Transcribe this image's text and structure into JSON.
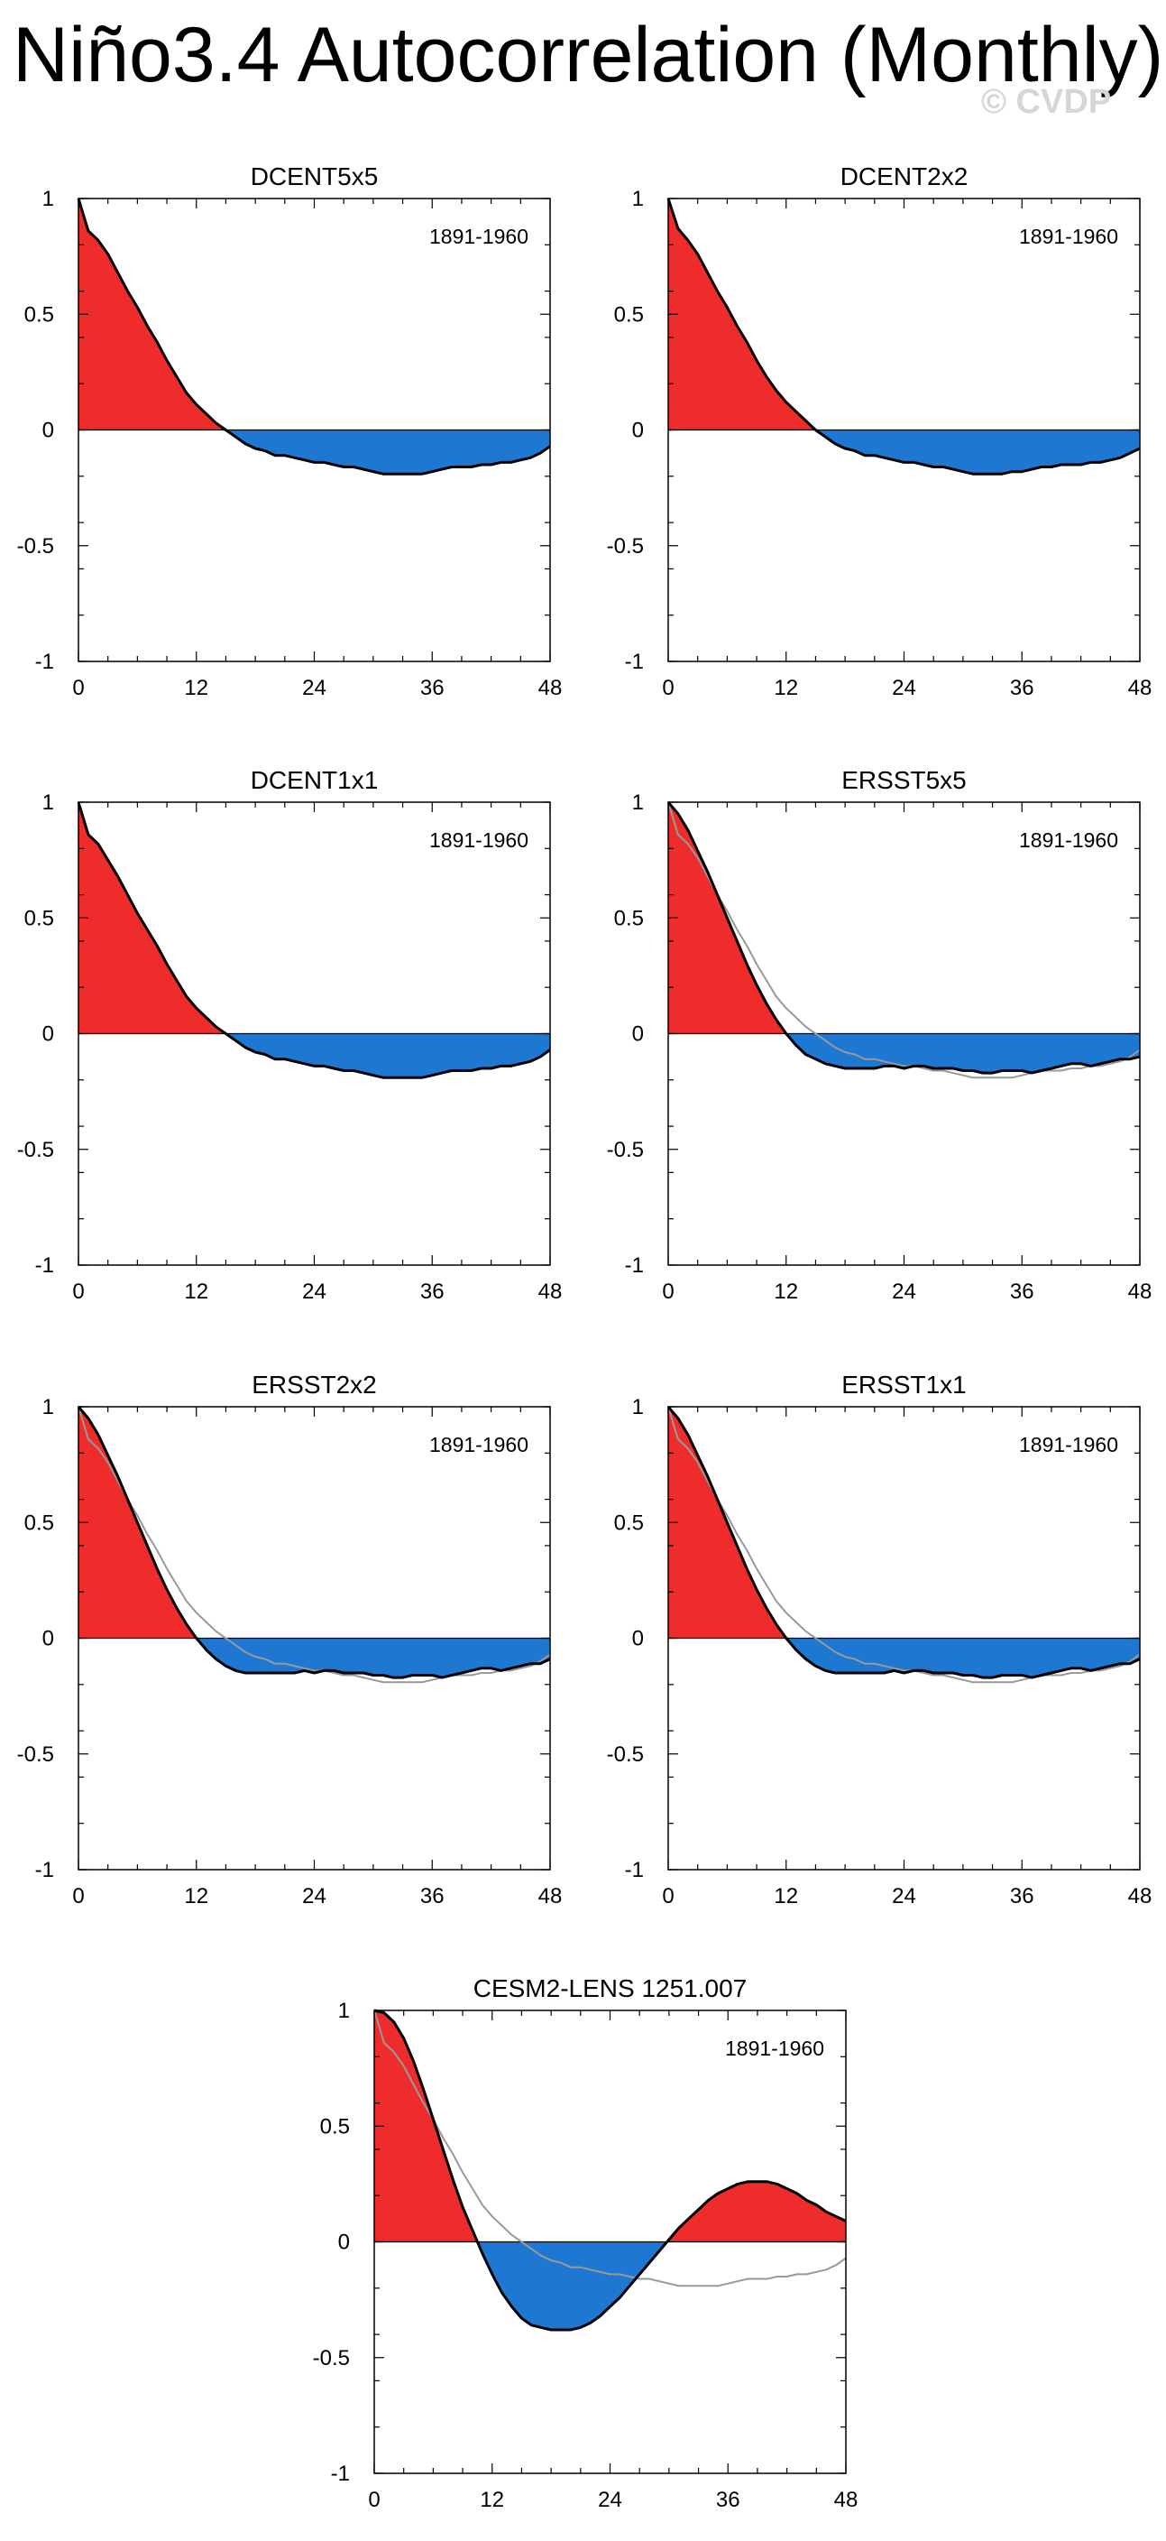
{
  "page": {
    "title": "Niño3.4 Autocorrelation (Monthly)",
    "watermark": "© CVDP"
  },
  "colors": {
    "positive": "#ee2c2c",
    "negative": "#1e78d2",
    "line": "#000000",
    "reference": "#999999"
  },
  "chart_data": [
    {
      "type": "area",
      "title": "DCENT5x5",
      "period": "1891-1960",
      "xlim": [
        0,
        48
      ],
      "ylim": [
        -1,
        1
      ],
      "xticks": [
        0,
        12,
        24,
        36,
        48
      ],
      "yticks": [
        -1,
        -0.5,
        0,
        0.5,
        1
      ],
      "yticklabels": [
        "-1",
        "-0.5",
        "0",
        "0.5",
        "1"
      ],
      "lags": [
        0,
        1,
        2,
        3,
        4,
        5,
        6,
        7,
        8,
        9,
        10,
        11,
        12,
        13,
        14,
        15,
        16,
        17,
        18,
        19,
        20,
        21,
        22,
        23,
        24,
        25,
        26,
        27,
        28,
        29,
        30,
        31,
        32,
        33,
        34,
        35,
        36,
        37,
        38,
        39,
        40,
        41,
        42,
        43,
        44,
        45,
        46,
        47,
        48
      ],
      "values": [
        1.0,
        0.86,
        0.82,
        0.76,
        0.68,
        0.6,
        0.53,
        0.45,
        0.38,
        0.3,
        0.23,
        0.16,
        0.11,
        0.07,
        0.03,
        0.0,
        -0.03,
        -0.06,
        -0.08,
        -0.09,
        -0.11,
        -0.11,
        -0.12,
        -0.13,
        -0.14,
        -0.14,
        -0.15,
        -0.16,
        -0.16,
        -0.17,
        -0.18,
        -0.19,
        -0.19,
        -0.19,
        -0.19,
        -0.19,
        -0.18,
        -0.17,
        -0.16,
        -0.16,
        -0.16,
        -0.15,
        -0.15,
        -0.14,
        -0.14,
        -0.13,
        -0.12,
        -0.1,
        -0.07
      ],
      "reference": null
    },
    {
      "type": "area",
      "title": "DCENT2x2",
      "period": "1891-1960",
      "xlim": [
        0,
        48
      ],
      "ylim": [
        -1,
        1
      ],
      "xticks": [
        0,
        12,
        24,
        36,
        48
      ],
      "yticks": [
        -1,
        -0.5,
        0,
        0.5,
        1
      ],
      "yticklabels": [
        "-1",
        "-0.5",
        "0",
        "0.5",
        "1"
      ],
      "lags": [
        0,
        1,
        2,
        3,
        4,
        5,
        6,
        7,
        8,
        9,
        10,
        11,
        12,
        13,
        14,
        15,
        16,
        17,
        18,
        19,
        20,
        21,
        22,
        23,
        24,
        25,
        26,
        27,
        28,
        29,
        30,
        31,
        32,
        33,
        34,
        35,
        36,
        37,
        38,
        39,
        40,
        41,
        42,
        43,
        44,
        45,
        46,
        47,
        48
      ],
      "values": [
        1.0,
        0.87,
        0.82,
        0.76,
        0.68,
        0.6,
        0.53,
        0.45,
        0.38,
        0.3,
        0.23,
        0.17,
        0.12,
        0.08,
        0.04,
        0.0,
        -0.03,
        -0.06,
        -0.08,
        -0.09,
        -0.11,
        -0.11,
        -0.12,
        -0.13,
        -0.14,
        -0.14,
        -0.15,
        -0.16,
        -0.16,
        -0.17,
        -0.18,
        -0.19,
        -0.19,
        -0.19,
        -0.19,
        -0.18,
        -0.18,
        -0.17,
        -0.16,
        -0.16,
        -0.15,
        -0.15,
        -0.15,
        -0.14,
        -0.14,
        -0.13,
        -0.12,
        -0.1,
        -0.08
      ],
      "reference": null
    },
    {
      "type": "area",
      "title": "DCENT1x1",
      "period": "1891-1960",
      "xlim": [
        0,
        48
      ],
      "ylim": [
        -1,
        1
      ],
      "xticks": [
        0,
        12,
        24,
        36,
        48
      ],
      "yticks": [
        -1,
        -0.5,
        0,
        0.5,
        1
      ],
      "yticklabels": [
        "-1",
        "-0.5",
        "0",
        "0.5",
        "1"
      ],
      "lags": [
        0,
        1,
        2,
        3,
        4,
        5,
        6,
        7,
        8,
        9,
        10,
        11,
        12,
        13,
        14,
        15,
        16,
        17,
        18,
        19,
        20,
        21,
        22,
        23,
        24,
        25,
        26,
        27,
        28,
        29,
        30,
        31,
        32,
        33,
        34,
        35,
        36,
        37,
        38,
        39,
        40,
        41,
        42,
        43,
        44,
        45,
        46,
        47,
        48
      ],
      "values": [
        1.0,
        0.86,
        0.82,
        0.75,
        0.68,
        0.6,
        0.52,
        0.45,
        0.38,
        0.3,
        0.23,
        0.16,
        0.11,
        0.07,
        0.03,
        0.0,
        -0.03,
        -0.06,
        -0.08,
        -0.09,
        -0.11,
        -0.11,
        -0.12,
        -0.13,
        -0.14,
        -0.14,
        -0.15,
        -0.16,
        -0.16,
        -0.17,
        -0.18,
        -0.19,
        -0.19,
        -0.19,
        -0.19,
        -0.19,
        -0.18,
        -0.17,
        -0.16,
        -0.16,
        -0.16,
        -0.15,
        -0.15,
        -0.14,
        -0.14,
        -0.13,
        -0.12,
        -0.1,
        -0.07
      ],
      "reference": null
    },
    {
      "type": "area",
      "title": "ERSST5x5",
      "period": "1891-1960",
      "xlim": [
        0,
        48
      ],
      "ylim": [
        -1,
        1
      ],
      "xticks": [
        0,
        12,
        24,
        36,
        48
      ],
      "yticks": [
        -1,
        -0.5,
        0,
        0.5,
        1
      ],
      "yticklabels": [
        "-1",
        "-0.5",
        "0",
        "0.5",
        "1"
      ],
      "lags": [
        0,
        1,
        2,
        3,
        4,
        5,
        6,
        7,
        8,
        9,
        10,
        11,
        12,
        13,
        14,
        15,
        16,
        17,
        18,
        19,
        20,
        21,
        22,
        23,
        24,
        25,
        26,
        27,
        28,
        29,
        30,
        31,
        32,
        33,
        34,
        35,
        36,
        37,
        38,
        39,
        40,
        41,
        42,
        43,
        44,
        45,
        46,
        47,
        48
      ],
      "values": [
        1.0,
        0.95,
        0.88,
        0.79,
        0.7,
        0.6,
        0.5,
        0.4,
        0.3,
        0.21,
        0.13,
        0.06,
        0.0,
        -0.05,
        -0.09,
        -0.11,
        -0.13,
        -0.14,
        -0.15,
        -0.15,
        -0.15,
        -0.15,
        -0.14,
        -0.14,
        -0.15,
        -0.14,
        -0.14,
        -0.15,
        -0.15,
        -0.15,
        -0.16,
        -0.16,
        -0.17,
        -0.17,
        -0.16,
        -0.16,
        -0.16,
        -0.17,
        -0.16,
        -0.15,
        -0.14,
        -0.13,
        -0.13,
        -0.14,
        -0.13,
        -0.12,
        -0.11,
        -0.11,
        -0.1
      ],
      "reference": [
        1.0,
        0.86,
        0.82,
        0.76,
        0.68,
        0.6,
        0.53,
        0.45,
        0.38,
        0.3,
        0.23,
        0.16,
        0.11,
        0.07,
        0.03,
        0.0,
        -0.03,
        -0.06,
        -0.08,
        -0.09,
        -0.11,
        -0.11,
        -0.12,
        -0.13,
        -0.14,
        -0.14,
        -0.15,
        -0.16,
        -0.16,
        -0.17,
        -0.18,
        -0.19,
        -0.19,
        -0.19,
        -0.19,
        -0.19,
        -0.18,
        -0.17,
        -0.16,
        -0.16,
        -0.16,
        -0.15,
        -0.15,
        -0.14,
        -0.14,
        -0.13,
        -0.12,
        -0.1,
        -0.07
      ]
    },
    {
      "type": "area",
      "title": "ERSST2x2",
      "period": "1891-1960",
      "xlim": [
        0,
        48
      ],
      "ylim": [
        -1,
        1
      ],
      "xticks": [
        0,
        12,
        24,
        36,
        48
      ],
      "yticks": [
        -1,
        -0.5,
        0,
        0.5,
        1
      ],
      "yticklabels": [
        "-1",
        "-0.5",
        "0",
        "0.5",
        "1"
      ],
      "lags": [
        0,
        1,
        2,
        3,
        4,
        5,
        6,
        7,
        8,
        9,
        10,
        11,
        12,
        13,
        14,
        15,
        16,
        17,
        18,
        19,
        20,
        21,
        22,
        23,
        24,
        25,
        26,
        27,
        28,
        29,
        30,
        31,
        32,
        33,
        34,
        35,
        36,
        37,
        38,
        39,
        40,
        41,
        42,
        43,
        44,
        45,
        46,
        47,
        48
      ],
      "values": [
        1.0,
        0.95,
        0.88,
        0.79,
        0.7,
        0.6,
        0.5,
        0.4,
        0.3,
        0.21,
        0.13,
        0.06,
        0.0,
        -0.05,
        -0.09,
        -0.12,
        -0.14,
        -0.15,
        -0.15,
        -0.15,
        -0.15,
        -0.15,
        -0.15,
        -0.14,
        -0.15,
        -0.14,
        -0.14,
        -0.15,
        -0.15,
        -0.15,
        -0.16,
        -0.16,
        -0.17,
        -0.17,
        -0.16,
        -0.16,
        -0.16,
        -0.17,
        -0.16,
        -0.15,
        -0.14,
        -0.13,
        -0.13,
        -0.14,
        -0.13,
        -0.12,
        -0.11,
        -0.11,
        -0.09
      ],
      "reference": [
        1.0,
        0.86,
        0.82,
        0.76,
        0.68,
        0.6,
        0.53,
        0.45,
        0.38,
        0.3,
        0.23,
        0.16,
        0.11,
        0.07,
        0.03,
        0.0,
        -0.03,
        -0.06,
        -0.08,
        -0.09,
        -0.11,
        -0.11,
        -0.12,
        -0.13,
        -0.14,
        -0.14,
        -0.15,
        -0.16,
        -0.16,
        -0.17,
        -0.18,
        -0.19,
        -0.19,
        -0.19,
        -0.19,
        -0.19,
        -0.18,
        -0.17,
        -0.16,
        -0.16,
        -0.16,
        -0.15,
        -0.15,
        -0.14,
        -0.14,
        -0.13,
        -0.12,
        -0.1,
        -0.07
      ]
    },
    {
      "type": "area",
      "title": "ERSST1x1",
      "period": "1891-1960",
      "xlim": [
        0,
        48
      ],
      "ylim": [
        -1,
        1
      ],
      "xticks": [
        0,
        12,
        24,
        36,
        48
      ],
      "yticks": [
        -1,
        -0.5,
        0,
        0.5,
        1
      ],
      "yticklabels": [
        "-1",
        "-0.5",
        "0",
        "0.5",
        "1"
      ],
      "lags": [
        0,
        1,
        2,
        3,
        4,
        5,
        6,
        7,
        8,
        9,
        10,
        11,
        12,
        13,
        14,
        15,
        16,
        17,
        18,
        19,
        20,
        21,
        22,
        23,
        24,
        25,
        26,
        27,
        28,
        29,
        30,
        31,
        32,
        33,
        34,
        35,
        36,
        37,
        38,
        39,
        40,
        41,
        42,
        43,
        44,
        45,
        46,
        47,
        48
      ],
      "values": [
        1.0,
        0.95,
        0.88,
        0.79,
        0.7,
        0.6,
        0.5,
        0.4,
        0.3,
        0.21,
        0.13,
        0.06,
        0.0,
        -0.05,
        -0.09,
        -0.12,
        -0.14,
        -0.15,
        -0.15,
        -0.15,
        -0.15,
        -0.15,
        -0.15,
        -0.14,
        -0.15,
        -0.14,
        -0.14,
        -0.15,
        -0.15,
        -0.15,
        -0.16,
        -0.16,
        -0.17,
        -0.17,
        -0.16,
        -0.16,
        -0.16,
        -0.17,
        -0.16,
        -0.15,
        -0.14,
        -0.13,
        -0.13,
        -0.14,
        -0.13,
        -0.12,
        -0.11,
        -0.11,
        -0.09
      ],
      "reference": [
        1.0,
        0.86,
        0.82,
        0.76,
        0.68,
        0.6,
        0.53,
        0.45,
        0.38,
        0.3,
        0.23,
        0.16,
        0.11,
        0.07,
        0.03,
        0.0,
        -0.03,
        -0.06,
        -0.08,
        -0.09,
        -0.11,
        -0.11,
        -0.12,
        -0.13,
        -0.14,
        -0.14,
        -0.15,
        -0.16,
        -0.16,
        -0.17,
        -0.18,
        -0.19,
        -0.19,
        -0.19,
        -0.19,
        -0.19,
        -0.18,
        -0.17,
        -0.16,
        -0.16,
        -0.16,
        -0.15,
        -0.15,
        -0.14,
        -0.14,
        -0.13,
        -0.12,
        -0.1,
        -0.07
      ]
    },
    {
      "type": "area",
      "title": "CESM2-LENS 1251.007",
      "period": "1891-1960",
      "xlim": [
        0,
        48
      ],
      "ylim": [
        -1,
        1
      ],
      "xticks": [
        0,
        12,
        24,
        36,
        48
      ],
      "yticks": [
        -1,
        -0.5,
        0,
        0.5,
        1
      ],
      "yticklabels": [
        "-1",
        "-0.5",
        "0",
        "0.5",
        "1"
      ],
      "lags": [
        0,
        1,
        2,
        3,
        4,
        5,
        6,
        7,
        8,
        9,
        10,
        11,
        12,
        13,
        14,
        15,
        16,
        17,
        18,
        19,
        20,
        21,
        22,
        23,
        24,
        25,
        26,
        27,
        28,
        29,
        30,
        31,
        32,
        33,
        34,
        35,
        36,
        37,
        38,
        39,
        40,
        41,
        42,
        43,
        44,
        45,
        46,
        47,
        48
      ],
      "values": [
        1.0,
        0.99,
        0.95,
        0.88,
        0.78,
        0.66,
        0.53,
        0.4,
        0.27,
        0.15,
        0.05,
        -0.05,
        -0.14,
        -0.22,
        -0.28,
        -0.33,
        -0.36,
        -0.37,
        -0.38,
        -0.38,
        -0.38,
        -0.37,
        -0.35,
        -0.32,
        -0.28,
        -0.24,
        -0.19,
        -0.14,
        -0.09,
        -0.04,
        0.01,
        0.06,
        0.1,
        0.14,
        0.18,
        0.21,
        0.23,
        0.25,
        0.26,
        0.26,
        0.26,
        0.25,
        0.23,
        0.21,
        0.18,
        0.16,
        0.13,
        0.11,
        0.09
      ],
      "reference": [
        1.0,
        0.86,
        0.82,
        0.76,
        0.68,
        0.6,
        0.53,
        0.45,
        0.38,
        0.3,
        0.23,
        0.16,
        0.11,
        0.07,
        0.03,
        0.0,
        -0.03,
        -0.06,
        -0.08,
        -0.09,
        -0.11,
        -0.11,
        -0.12,
        -0.13,
        -0.14,
        -0.14,
        -0.15,
        -0.16,
        -0.16,
        -0.17,
        -0.18,
        -0.19,
        -0.19,
        -0.19,
        -0.19,
        -0.19,
        -0.18,
        -0.17,
        -0.16,
        -0.16,
        -0.16,
        -0.15,
        -0.15,
        -0.14,
        -0.14,
        -0.13,
        -0.12,
        -0.1,
        -0.07
      ]
    }
  ]
}
